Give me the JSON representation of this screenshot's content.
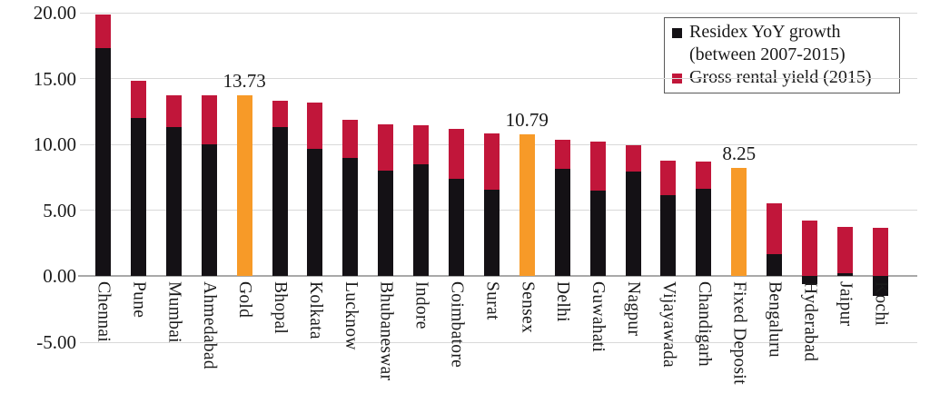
{
  "chart_data": {
    "type": "stacked-bar",
    "title": "",
    "xlabel": "",
    "ylabel": "",
    "ylim": [
      -5,
      20
    ],
    "grid": true,
    "legend_position": "top-right",
    "y_ticks": [
      {
        "value": 20,
        "label": "20.00"
      },
      {
        "value": 15,
        "label": "15.00"
      },
      {
        "value": 10,
        "label": "10.00"
      },
      {
        "value": 5,
        "label": "5.00"
      },
      {
        "value": 0,
        "label": "0.00"
      },
      {
        "value": -5,
        "label": "-5.00"
      }
    ],
    "categories": [
      "Chennai",
      "Pune",
      "Mumbai",
      "Ahmedabad",
      "Gold",
      "Bhopal",
      "Kolkata",
      "Lucknow",
      "Bhubaneswar",
      "Indore",
      "Coimbatore",
      "Surat",
      "Sensex",
      "Delhi",
      "Guwahati",
      "Nagpur",
      "Vijayawada",
      "Chandigarh",
      "Fixed Deposit",
      "Bengaluru",
      "Hyderabad",
      "Jaipur",
      "Kochi"
    ],
    "series": [
      {
        "name": "Residex YoY growth (between 2007-2015)",
        "color": "#141115",
        "values": [
          17.3,
          12.0,
          11.3,
          10.0,
          null,
          11.35,
          9.7,
          8.95,
          8.0,
          8.5,
          7.4,
          6.6,
          null,
          8.15,
          6.5,
          7.95,
          6.15,
          6.65,
          null,
          1.65,
          -0.6,
          0.2,
          -1.5
        ]
      },
      {
        "name": "Gross rental yield (2015)",
        "color": "#C1163A",
        "values": [
          2.55,
          2.85,
          2.4,
          3.7,
          null,
          1.95,
          3.5,
          2.9,
          3.5,
          2.95,
          3.8,
          4.25,
          null,
          2.2,
          3.75,
          2.0,
          2.6,
          2.05,
          null,
          3.9,
          4.25,
          3.55,
          3.65
        ]
      }
    ],
    "benchmarks": [
      {
        "category": "Gold",
        "index": 4,
        "value": 13.73,
        "label": "13.73"
      },
      {
        "category": "Sensex",
        "index": 12,
        "value": 10.79,
        "label": "10.79"
      },
      {
        "category": "Fixed Deposit",
        "index": 18,
        "value": 8.25,
        "label": "8.25"
      }
    ],
    "benchmark_color": "#F79A28",
    "legend": {
      "items": [
        {
          "label": "Residex YoY growth (between 2007-2015)",
          "color": "#141115"
        },
        {
          "label": "Gross rental yield (2015)",
          "color": "#C1163A"
        }
      ]
    },
    "colors": {
      "residex": "#141115",
      "rental": "#C1163A",
      "benchmark": "#F79A28",
      "gridline": "#d9d9d9",
      "axis_line": "#a9a9a9",
      "text": "#1a1a1a"
    }
  }
}
